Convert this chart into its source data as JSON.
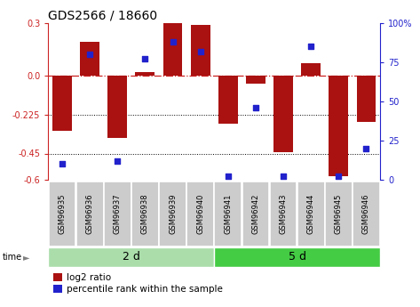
{
  "title": "GDS2566 / 18660",
  "samples": [
    "GSM96935",
    "GSM96936",
    "GSM96937",
    "GSM96938",
    "GSM96939",
    "GSM96940",
    "GSM96941",
    "GSM96942",
    "GSM96943",
    "GSM96944",
    "GSM96945",
    "GSM96946"
  ],
  "log2_ratio": [
    -0.32,
    0.19,
    -0.36,
    0.02,
    0.3,
    0.29,
    -0.28,
    -0.05,
    -0.44,
    0.07,
    -0.58,
    -0.27
  ],
  "percentile_rank": [
    10,
    80,
    12,
    77,
    88,
    82,
    2,
    46,
    2,
    85,
    2,
    20
  ],
  "groups": [
    {
      "label": "2 d",
      "start": 0,
      "end": 6,
      "color": "#90ee90"
    },
    {
      "label": "5 d",
      "start": 6,
      "end": 12,
      "color": "#32cd32"
    }
  ],
  "ylim": [
    -0.6,
    0.3
  ],
  "yticks_left": [
    0.3,
    0.0,
    -0.225,
    -0.45,
    -0.6
  ],
  "yticks_right": [
    100,
    75,
    50,
    25,
    0
  ],
  "bar_color": "#aa1111",
  "dot_color": "#2222cc",
  "zero_line_color": "#cc2222",
  "hline_color": "#000000",
  "sample_box_color": "#cccccc",
  "group1_color": "#aaddaa",
  "group2_color": "#44cc44",
  "title_fontsize": 10,
  "tick_fontsize": 7,
  "sample_fontsize": 6,
  "group_fontsize": 9,
  "legend_fontsize": 7.5
}
